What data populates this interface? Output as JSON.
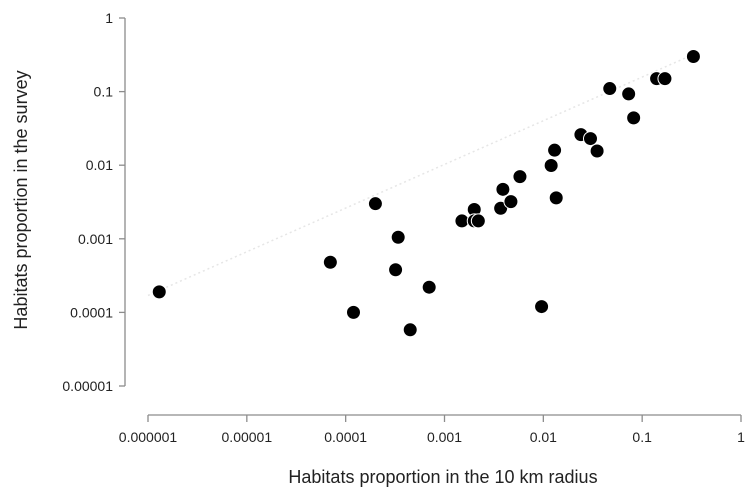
{
  "chart_data": {
    "type": "scatter",
    "xlabel": "Habitats proportion in the 10 km radius",
    "ylabel": "Habitats proportion in the survey",
    "x_scale": "log",
    "y_scale": "log",
    "xlim": [
      1e-06,
      1
    ],
    "ylim": [
      1e-05,
      1
    ],
    "x_ticks": [
      1e-06,
      1e-05,
      0.0001,
      0.001,
      0.01,
      0.1,
      1
    ],
    "x_tick_labels": [
      "0.000001",
      "0.00001",
      "0.0001",
      "0.001",
      "0.01",
      "0.1",
      "1"
    ],
    "y_ticks": [
      1e-05,
      0.0001,
      0.001,
      0.01,
      0.1,
      1
    ],
    "y_tick_labels": [
      "0.00001",
      "0.0001",
      "0.001",
      "0.01",
      "0.1",
      "1"
    ],
    "grid": false,
    "legend": "none",
    "marker_color": "#000000",
    "marker_edge_color": "#ffffff",
    "trendline_color": "#e6e6e6",
    "trendline": {
      "x": [
        1e-06,
        0.33
      ],
      "y": [
        0.00017,
        0.32
      ]
    },
    "points": [
      {
        "x": 1.3e-06,
        "y": 0.00019
      },
      {
        "x": 7e-05,
        "y": 0.00048
      },
      {
        "x": 0.00012,
        "y": 0.0001
      },
      {
        "x": 0.0002,
        "y": 0.003
      },
      {
        "x": 0.00032,
        "y": 0.00038
      },
      {
        "x": 0.00034,
        "y": 0.00105
      },
      {
        "x": 0.00045,
        "y": 5.8e-05
      },
      {
        "x": 0.0007,
        "y": 0.00022
      },
      {
        "x": 0.0015,
        "y": 0.00175
      },
      {
        "x": 0.002,
        "y": 0.0025
      },
      {
        "x": 0.002,
        "y": 0.00175
      },
      {
        "x": 0.0022,
        "y": 0.00175
      },
      {
        "x": 0.0037,
        "y": 0.0026
      },
      {
        "x": 0.0039,
        "y": 0.0047
      },
      {
        "x": 0.0047,
        "y": 0.0032
      },
      {
        "x": 0.0058,
        "y": 0.007
      },
      {
        "x": 0.0096,
        "y": 0.00012
      },
      {
        "x": 0.012,
        "y": 0.0099
      },
      {
        "x": 0.013,
        "y": 0.016
      },
      {
        "x": 0.0135,
        "y": 0.0036
      },
      {
        "x": 0.024,
        "y": 0.026
      },
      {
        "x": 0.03,
        "y": 0.023
      },
      {
        "x": 0.035,
        "y": 0.0156
      },
      {
        "x": 0.047,
        "y": 0.11
      },
      {
        "x": 0.073,
        "y": 0.093
      },
      {
        "x": 0.082,
        "y": 0.044
      },
      {
        "x": 0.14,
        "y": 0.15
      },
      {
        "x": 0.17,
        "y": 0.15
      },
      {
        "x": 0.33,
        "y": 0.3
      }
    ]
  }
}
